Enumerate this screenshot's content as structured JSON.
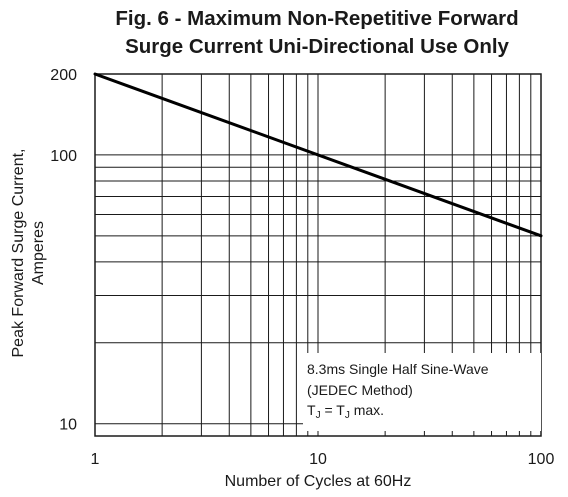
{
  "chart_data": {
    "type": "line",
    "title": [
      "Fig. 6 - Maximum Non-Repetitive Forward",
      "Surge Current Uni-Directional Use Only"
    ],
    "xlabel": "Number of Cycles at 60Hz",
    "ylabel": [
      "Peak Forward Surge Current,",
      "Amperes"
    ],
    "x_scale": "log",
    "y_scale": "log",
    "xlim": [
      1,
      100
    ],
    "ylim": [
      9,
      200
    ],
    "x_ticks": [
      {
        "value": 1,
        "label": "1"
      },
      {
        "value": 10,
        "label": "10"
      },
      {
        "value": 100,
        "label": "100"
      }
    ],
    "y_ticks": [
      {
        "value": 10,
        "label": "10"
      },
      {
        "value": 100,
        "label": "100"
      },
      {
        "value": 200,
        "label": "200"
      }
    ],
    "grid": true,
    "series": [
      {
        "x": [
          1,
          100
        ],
        "y": [
          200,
          50
        ]
      }
    ],
    "annotation": {
      "lines": [
        "8.3ms Single Half Sine-Wave",
        "(JEDEC Method)"
      ],
      "tj_prefix": "T",
      "tj_sub1": "J",
      "tj_middle": " = T",
      "tj_sub2": "J",
      "tj_suffix": " max.",
      "position": "bottom-right"
    }
  }
}
